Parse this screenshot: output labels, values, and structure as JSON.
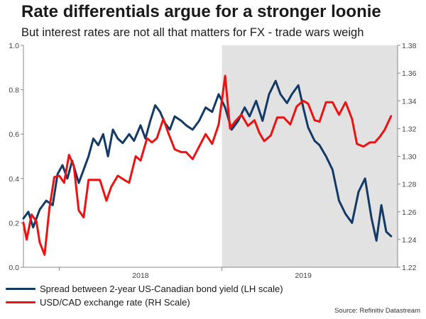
{
  "title": "Rate differentials argue for a stronger loonie",
  "subtitle": "But interest rates are not all that matters for FX - trade wars weigh",
  "source": "Source: Refinitiv Datastream",
  "colors": {
    "spread": "#123a64",
    "usdcad": "#ee1111",
    "shade": "#e2e2e2"
  },
  "chart_data": {
    "type": "line",
    "title": "Rate differentials argue for a stronger loonie",
    "xlabel": "",
    "ylabel": "",
    "x_range": [
      2017.28,
      2019.58
    ],
    "x_ticks": [
      {
        "value": 2018.0,
        "label": "2018"
      },
      {
        "value": 2019.0,
        "label": "2019"
      }
    ],
    "x_tick_marks": [
      2017.5,
      2018.5
    ],
    "shaded_region": [
      2018.5,
      2019.58
    ],
    "y_left": {
      "range": [
        0.0,
        1.0
      ],
      "ticks": [
        0.0,
        0.2,
        0.4,
        0.6,
        0.8,
        1.0
      ],
      "tick_labels": [
        "0.0",
        "0.2",
        "0.4",
        "0.6",
        "0.8",
        "1.0"
      ]
    },
    "y_right": {
      "range": [
        1.22,
        1.38
      ],
      "ticks": [
        1.22,
        1.24,
        1.26,
        1.28,
        1.3,
        1.32,
        1.34,
        1.36,
        1.38
      ],
      "tick_labels": [
        "1.22",
        "1.24",
        "1.26",
        "1.28",
        "1.30",
        "1.32",
        "1.34",
        "1.36",
        "1.38"
      ]
    },
    "series": [
      {
        "name": "Spread between 2-year US-Canadian bond yield (LH scale)",
        "axis": "left",
        "x": [
          2017.28,
          2017.31,
          2017.34,
          2017.38,
          2017.42,
          2017.46,
          2017.49,
          2017.52,
          2017.55,
          2017.58,
          2017.62,
          2017.65,
          2017.68,
          2017.71,
          2017.74,
          2017.77,
          2017.8,
          2017.83,
          2017.86,
          2017.89,
          2017.93,
          2017.96,
          2018.0,
          2018.03,
          2018.06,
          2018.09,
          2018.12,
          2018.15,
          2018.18,
          2018.21,
          2018.25,
          2018.28,
          2018.32,
          2018.36,
          2018.4,
          2018.44,
          2018.48,
          2018.52,
          2018.56,
          2018.6,
          2018.64,
          2018.67,
          2018.71,
          2018.75,
          2018.79,
          2018.83,
          2018.86,
          2018.9,
          2018.93,
          2018.97,
          2019.0,
          2019.03,
          2019.07,
          2019.1,
          2019.14,
          2019.18,
          2019.22,
          2019.26,
          2019.3,
          2019.34,
          2019.38,
          2019.42,
          2019.45,
          2019.48,
          2019.51,
          2019.54
        ],
        "values": [
          0.22,
          0.25,
          0.18,
          0.26,
          0.3,
          0.28,
          0.42,
          0.46,
          0.4,
          0.48,
          0.38,
          0.44,
          0.5,
          0.58,
          0.55,
          0.6,
          0.5,
          0.62,
          0.58,
          0.56,
          0.6,
          0.57,
          0.64,
          0.58,
          0.66,
          0.73,
          0.7,
          0.65,
          0.62,
          0.68,
          0.66,
          0.64,
          0.62,
          0.66,
          0.72,
          0.7,
          0.78,
          0.72,
          0.62,
          0.66,
          0.72,
          0.68,
          0.75,
          0.66,
          0.78,
          0.84,
          0.78,
          0.74,
          0.78,
          0.82,
          0.72,
          0.63,
          0.57,
          0.55,
          0.5,
          0.44,
          0.3,
          0.24,
          0.2,
          0.34,
          0.4,
          0.22,
          0.12,
          0.28,
          0.16,
          0.14
        ]
      },
      {
        "name": "USD/CAD exchange rate (RH Scale)",
        "axis": "right",
        "x": [
          2017.28,
          2017.3,
          2017.33,
          2017.36,
          2017.38,
          2017.41,
          2017.44,
          2017.47,
          2017.5,
          2017.53,
          2017.56,
          2017.59,
          2017.62,
          2017.65,
          2017.68,
          2017.72,
          2017.75,
          2017.79,
          2017.82,
          2017.86,
          2017.9,
          2017.93,
          2017.97,
          2018.0,
          2018.04,
          2018.07,
          2018.1,
          2018.14,
          2018.17,
          2018.21,
          2018.25,
          2018.28,
          2018.32,
          2018.36,
          2018.4,
          2018.44,
          2018.48,
          2018.52,
          2018.55,
          2018.58,
          2018.62,
          2018.66,
          2018.7,
          2018.73,
          2018.76,
          2018.8,
          2018.84,
          2018.88,
          2018.92,
          2018.96,
          2019.0,
          2019.03,
          2019.07,
          2019.1,
          2019.14,
          2019.18,
          2019.22,
          2019.26,
          2019.3,
          2019.33,
          2019.37,
          2019.41,
          2019.44,
          2019.47,
          2019.5,
          2019.54
        ],
        "values": [
          1.252,
          1.24,
          1.258,
          1.253,
          1.238,
          1.229,
          1.263,
          1.285,
          1.286,
          1.281,
          1.301,
          1.293,
          1.261,
          1.256,
          1.283,
          1.283,
          1.283,
          1.268,
          1.278,
          1.286,
          1.283,
          1.281,
          1.3,
          1.297,
          1.313,
          1.31,
          1.313,
          1.327,
          1.317,
          1.305,
          1.303,
          1.303,
          1.298,
          1.307,
          1.316,
          1.309,
          1.323,
          1.358,
          1.32,
          1.325,
          1.33,
          1.322,
          1.326,
          1.317,
          1.311,
          1.315,
          1.328,
          1.328,
          1.323,
          1.336,
          1.34,
          1.338,
          1.326,
          1.325,
          1.339,
          1.339,
          1.33,
          1.339,
          1.327,
          1.309,
          1.307,
          1.31,
          1.31,
          1.314,
          1.319,
          1.329
        ]
      }
    ]
  },
  "legend": {
    "items": [
      {
        "label": "Spread between 2-year US-Canadian bond yield (LH scale)",
        "color": "#123a64"
      },
      {
        "label": "USD/CAD exchange rate (RH Scale)",
        "color": "#ee1111"
      }
    ]
  }
}
